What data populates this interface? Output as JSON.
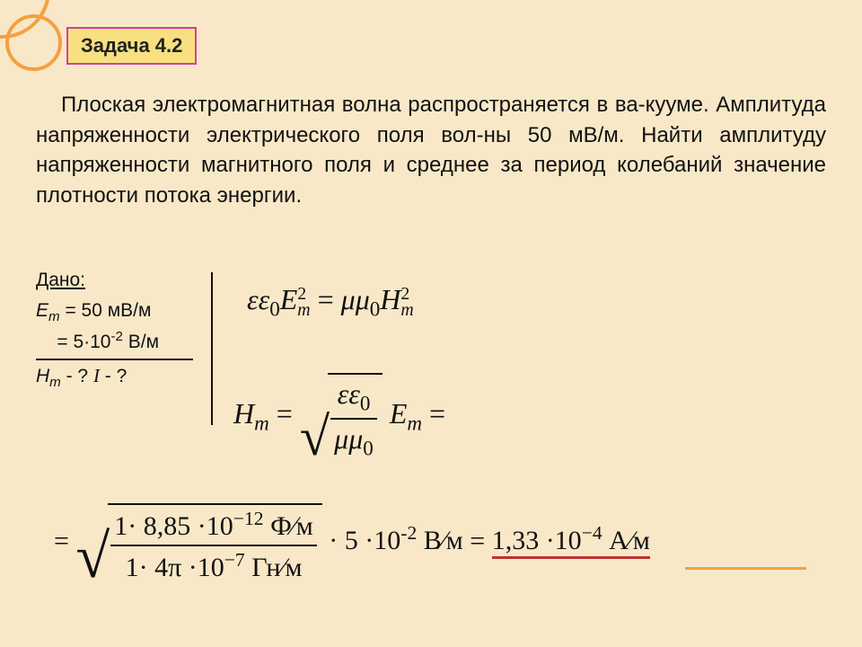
{
  "background_color": "#f8e8c8",
  "accent_box": {
    "bg": "#f8e080",
    "border": "#d040a0"
  },
  "circle_color": "#f5a040",
  "title": "Задача 4.2",
  "problem": "Плоская электромагнитная волна распространяется в ва-кууме. Амплитуда напряженности электрического поля вол-ны 50 мВ/м. Найти амплитуду напряженности магнитного поля и среднее за период колебаний значение плотности потока энергии.",
  "given": {
    "title": "Дано:",
    "line1a": "E",
    "line1b": " = 50 мВ/м",
    "line2": "   = 5·10",
    "line2b": " В/м",
    "findH": "H",
    "findHq": " - ?   ",
    "findI": "I",
    "findIq": " - ?"
  },
  "eq1": {
    "lhs_eps": "εε",
    "lhs_E": "E",
    "eq": " = ",
    "rhs_mu": "μμ",
    "rhs_H": "H"
  },
  "eq2": {
    "H": "H",
    "eq": " = ",
    "num": "εε",
    "den": "μμ",
    "E": "E",
    "tail": " ="
  },
  "eq3": {
    "lead": "= ",
    "num": "1· 8,85 ·10",
    "num_exp": "−12",
    "num_unit": " Ф⁄м",
    "den": "1· 4π ·10",
    "den_exp": "−7",
    "den_unit": " Гн⁄м",
    "mid": " · 5 ·10",
    "mid_exp": "-2",
    "mid_unit": " В⁄м",
    "eq": " = ",
    "res": "1,33 ·10",
    "res_exp": "−4",
    "res_unit": " А⁄м"
  }
}
